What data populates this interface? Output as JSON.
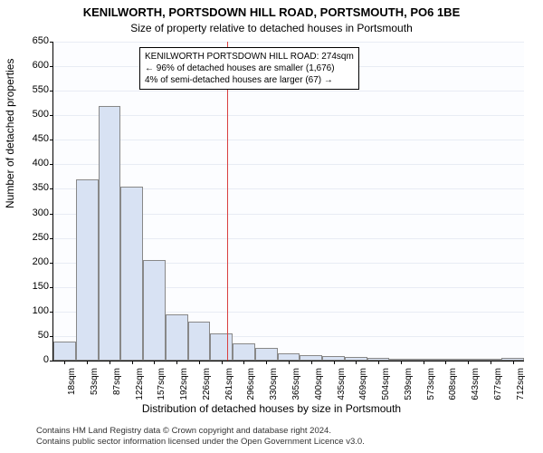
{
  "title_line1": "KENILWORTH, PORTSDOWN HILL ROAD, PORTSMOUTH, PO6 1BE",
  "title_line2": "Size of property relative to detached houses in Portsmouth",
  "ylabel": "Number of detached properties",
  "xlabel": "Distribution of detached houses by size in Portsmouth",
  "footnote_line1": "Contains HM Land Registry data © Crown copyright and database right 2024.",
  "footnote_line2": "Contains public sector information licensed under the Open Government Licence v3.0.",
  "annotation": {
    "line1": "KENILWORTH PORTSDOWN HILL ROAD: 274sqm",
    "line2": "← 96% of detached houses are smaller (1,676)",
    "line3": "4% of semi-detached houses are larger (67) →"
  },
  "chart": {
    "type": "histogram",
    "ymax": 650,
    "ytick_step": 50,
    "yticks": [
      0,
      50,
      100,
      150,
      200,
      250,
      300,
      350,
      400,
      450,
      500,
      550,
      600,
      650
    ],
    "xtick_labels": [
      "18sqm",
      "53sqm",
      "87sqm",
      "122sqm",
      "157sqm",
      "192sqm",
      "226sqm",
      "261sqm",
      "296sqm",
      "330sqm",
      "365sqm",
      "400sqm",
      "435sqm",
      "469sqm",
      "504sqm",
      "539sqm",
      "573sqm",
      "608sqm",
      "643sqm",
      "677sqm",
      "712sqm"
    ],
    "values": [
      38,
      370,
      518,
      355,
      205,
      95,
      80,
      55,
      35,
      25,
      15,
      12,
      10,
      8,
      5,
      3,
      2,
      2,
      1,
      1,
      5
    ],
    "bar_fill": "#d8e2f3",
    "bar_border": "#888888",
    "grid_color": "#e8ecf4",
    "background": "#fcfdff",
    "reference_line_color": "#d94040",
    "reference_x_sqm": 274,
    "x_min_sqm": 18,
    "x_max_sqm": 712,
    "title_fontsize": 13,
    "subtitle_fontsize": 12,
    "label_fontsize": 12,
    "tick_fontsize": 11
  }
}
